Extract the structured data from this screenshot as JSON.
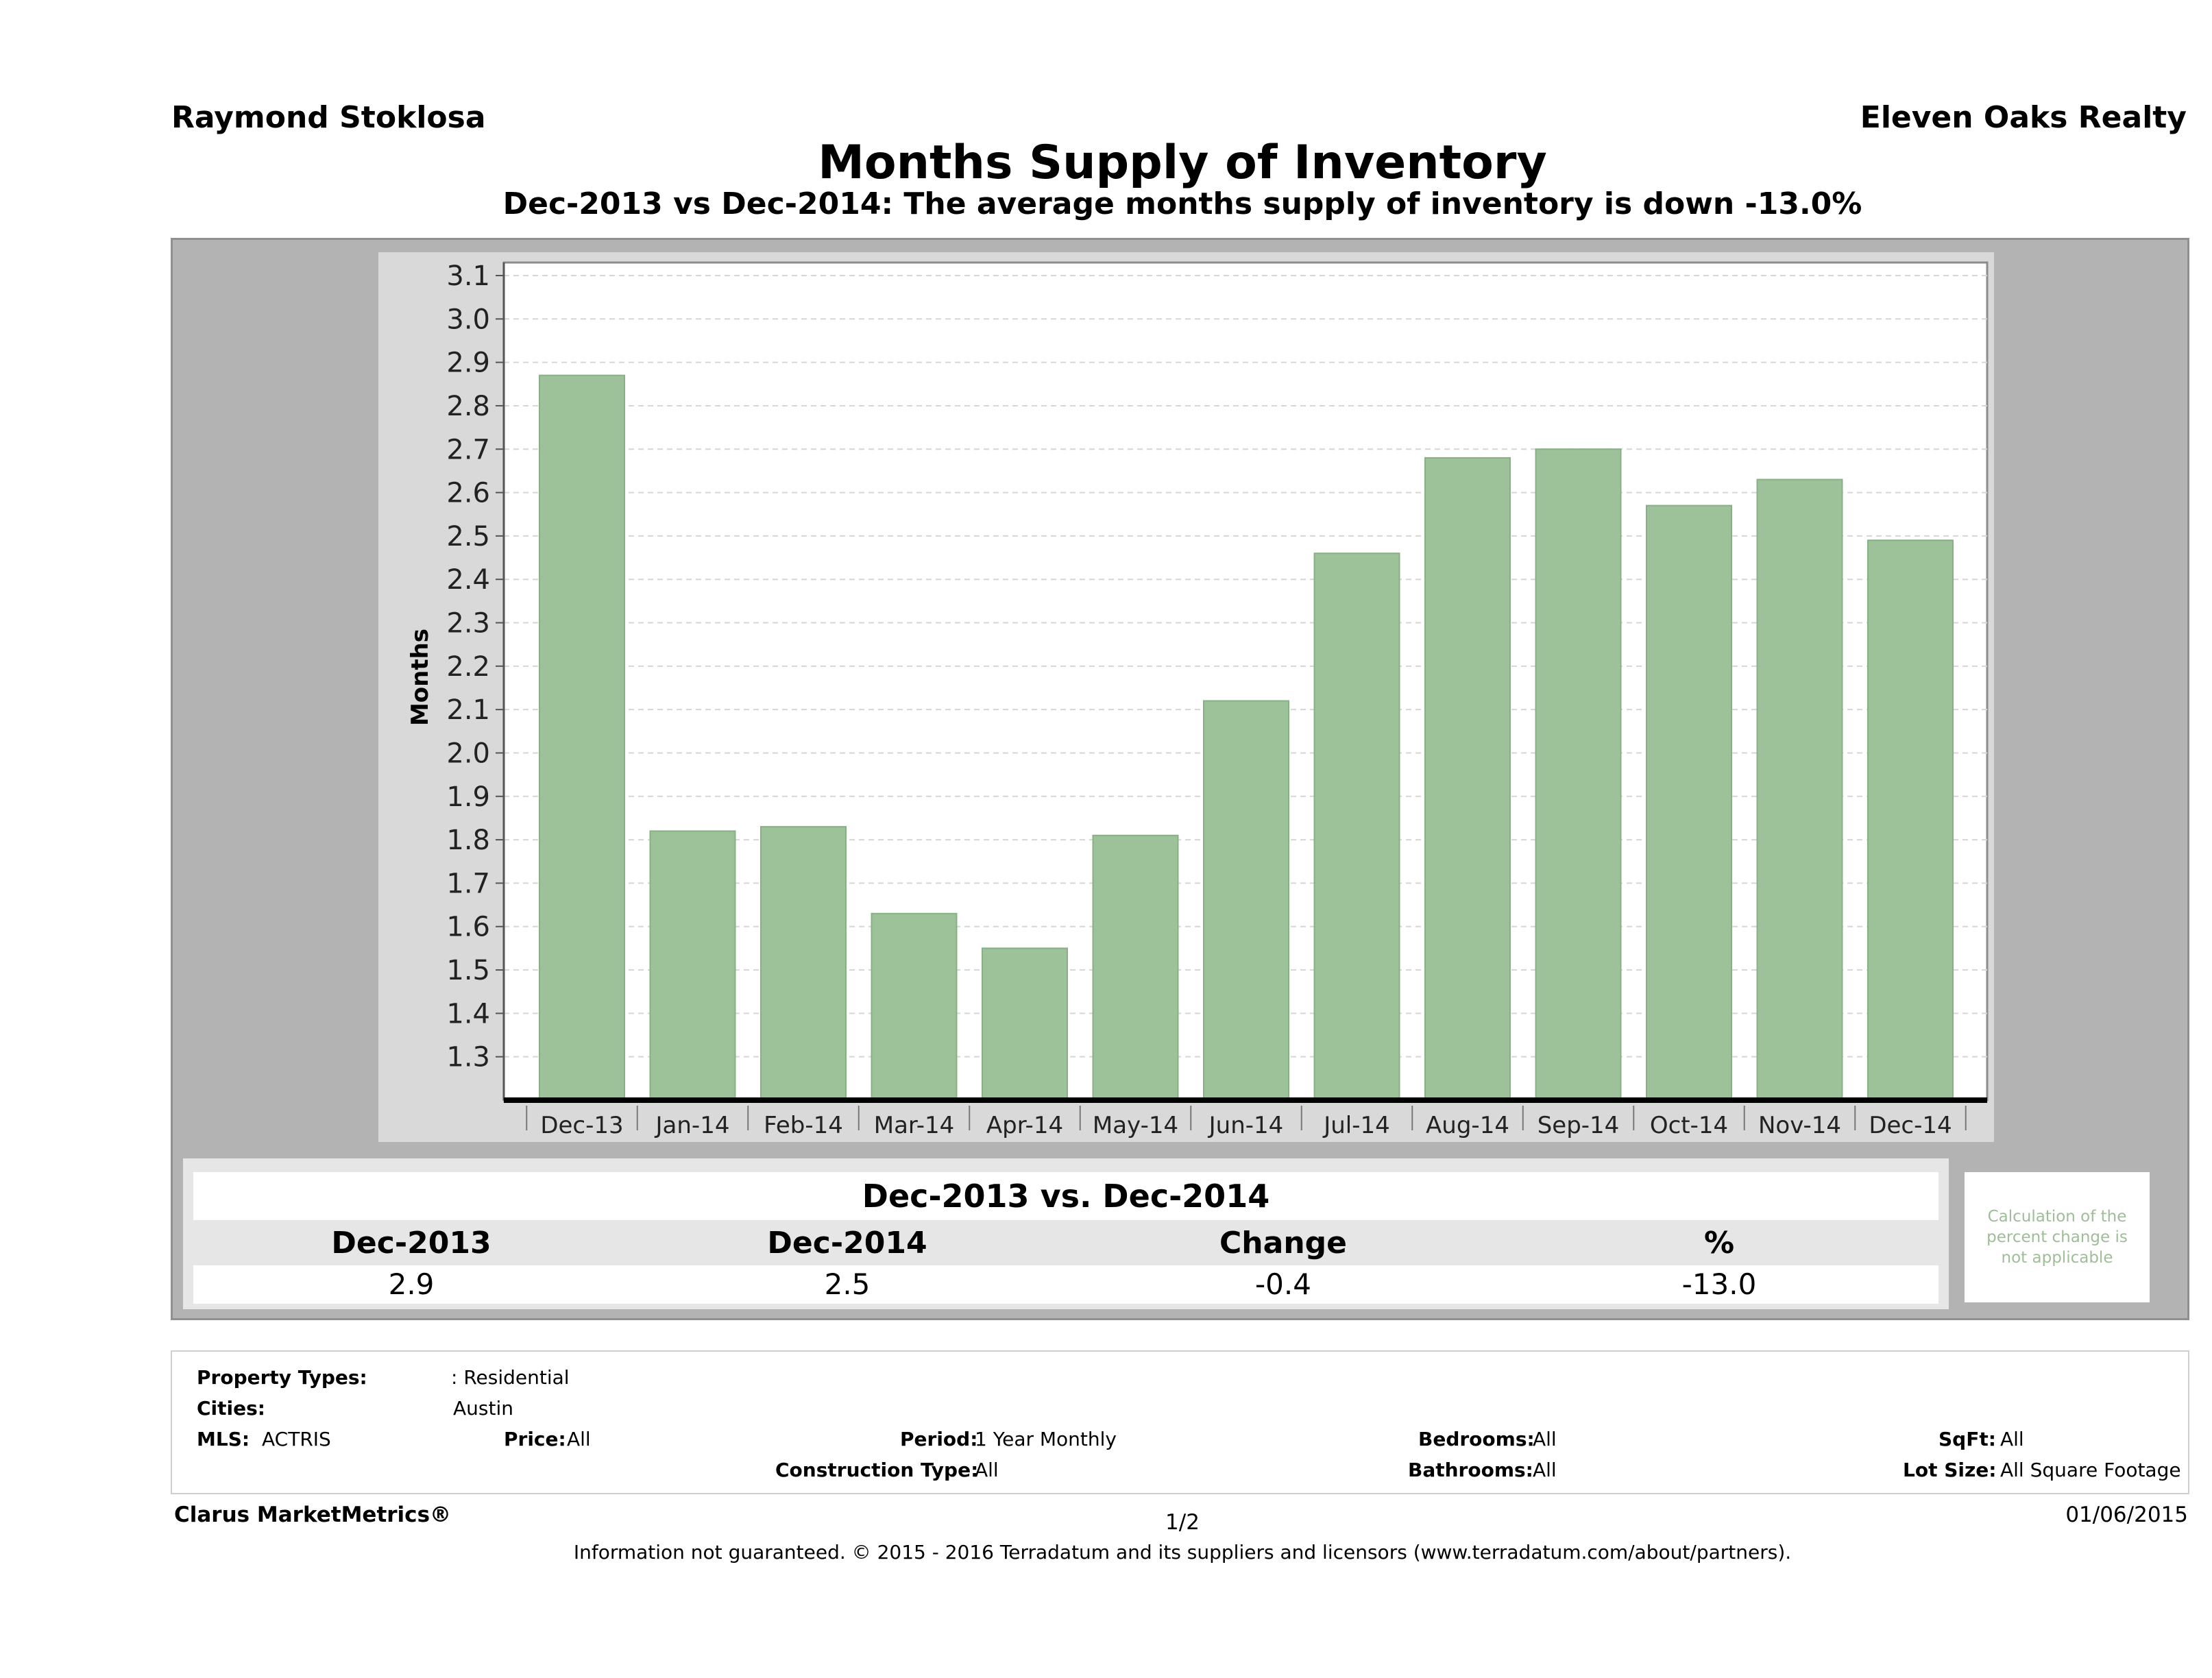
{
  "header": {
    "agent": "Raymond Stoklosa",
    "company": "Eleven Oaks Realty",
    "title": "Months Supply of Inventory",
    "subtitle": "Dec-2013 vs Dec-2014: The average months supply of inventory is down -13.0%"
  },
  "chart_data": {
    "type": "bar",
    "categories": [
      "Dec-13",
      "Jan-14",
      "Feb-14",
      "Mar-14",
      "Apr-14",
      "May-14",
      "Jun-14",
      "Jul-14",
      "Aug-14",
      "Sep-14",
      "Oct-14",
      "Nov-14",
      "Dec-14"
    ],
    "values": [
      2.87,
      1.82,
      1.83,
      1.63,
      1.55,
      1.81,
      2.12,
      2.46,
      2.68,
      2.7,
      2.57,
      2.63,
      2.49
    ],
    "ylabel": "Months",
    "ylim": [
      1.2,
      3.13
    ],
    "yticks": [
      "1.3",
      "1.4",
      "1.5",
      "1.6",
      "1.7",
      "1.8",
      "1.9",
      "2.0",
      "2.1",
      "2.2",
      "2.3",
      "2.4",
      "2.5",
      "2.6",
      "2.7",
      "2.8",
      "2.9",
      "3.0",
      "3.1"
    ],
    "grid": true,
    "bar_color": "#9dc29a"
  },
  "summary": {
    "title": "Dec-2013 vs. Dec-2014",
    "headers": [
      "Dec-2013",
      "Dec-2014",
      "Change",
      "%"
    ],
    "values": [
      "2.9",
      "2.5",
      "-0.4",
      "-13.0"
    ],
    "note": "Calculation of the percent change is not applicable"
  },
  "filters": {
    "property_types_label": "Property Types:",
    "property_types_value": ": Residential",
    "cities_label": "Cities:",
    "cities_value": "Austin",
    "mls_label": "MLS:",
    "mls_value": "ACTRIS",
    "price_label": "Price:",
    "price_value": "All",
    "period_label": "Period:",
    "period_value": "1 Year Monthly",
    "bedrooms_label": "Bedrooms:",
    "bedrooms_value": "All",
    "sqft_label": "SqFt:",
    "sqft_value": "All",
    "construction_label": "Construction Type:",
    "construction_value": "All",
    "bathrooms_label": "Bathrooms:",
    "bathrooms_value": "All",
    "lotsize_label": "Lot Size:",
    "lotsize_value": "All Square Footage"
  },
  "footer": {
    "brand": "Clarus MarketMetrics®",
    "page": "1/2",
    "date": "01/06/2015",
    "disclaimer": "Information not guaranteed. © 2015 - 2016 Terradatum and its suppliers and licensors (www.terradatum.com/about/partners)."
  }
}
